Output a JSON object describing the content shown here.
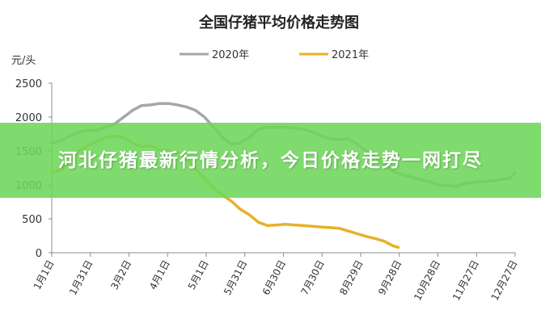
{
  "banner": {
    "headline": "河北仔猪最新行情分析，今日价格走势一网打尽"
  },
  "colors": {
    "series_2020": "#a6a6a6",
    "series_2021": "#e6b12a",
    "banner": "#6ed65a"
  },
  "chart_data": {
    "type": "line",
    "title": "全国仔猪平均价格走势图",
    "ylabel": "元/头",
    "xlabel": "",
    "ylim": [
      0,
      2500
    ],
    "yticks": [
      0,
      500,
      1000,
      1500,
      2000,
      2500
    ],
    "grid": false,
    "legend_position": "top",
    "x_ticks": [
      "1月1日",
      "1月31日",
      "3月2日",
      "4月1日",
      "5月1日",
      "5月31日",
      "6月30日",
      "7月30日",
      "8月29日",
      "9月28日",
      "10月28日",
      "11月27日",
      "12月27日"
    ],
    "series": [
      {
        "name": "2020年",
        "color": "#a6a6a6",
        "x": [
          0,
          7,
          14,
          21,
          28,
          35,
          42,
          49,
          56,
          63,
          70,
          77,
          84,
          91,
          98,
          105,
          112,
          119,
          126,
          133,
          140,
          147,
          154,
          161,
          168,
          175,
          182,
          189,
          196,
          203,
          210,
          217,
          224,
          231,
          238,
          245,
          252,
          259,
          266,
          273,
          280,
          287,
          294,
          301,
          308,
          315,
          322,
          329,
          336,
          343,
          350,
          357,
          361
        ],
        "y": [
          1620,
          1650,
          1720,
          1780,
          1800,
          1810,
          1850,
          1900,
          2000,
          2100,
          2170,
          2180,
          2200,
          2200,
          2180,
          2150,
          2100,
          2000,
          1850,
          1700,
          1600,
          1620,
          1700,
          1820,
          1850,
          1850,
          1850,
          1840,
          1820,
          1780,
          1720,
          1680,
          1670,
          1680,
          1600,
          1500,
          1400,
          1300,
          1200,
          1150,
          1120,
          1080,
          1050,
          1000,
          990,
          980,
          1020,
          1040,
          1050,
          1060,
          1080,
          1100,
          1180
        ]
      },
      {
        "name": "2021年",
        "color": "#e6b12a",
        "x": [
          0,
          7,
          14,
          21,
          28,
          35,
          42,
          49,
          56,
          63,
          70,
          77,
          84,
          91,
          98,
          105,
          112,
          119,
          126,
          133,
          140,
          147,
          154,
          161,
          168,
          175,
          182,
          189,
          196,
          203,
          210,
          217,
          224,
          231,
          238,
          245,
          252,
          259,
          266,
          270
        ],
        "y": [
          1180,
          1220,
          1350,
          1500,
          1580,
          1640,
          1700,
          1720,
          1700,
          1620,
          1560,
          1580,
          1520,
          1500,
          1480,
          1380,
          1240,
          1100,
          960,
          850,
          760,
          640,
          560,
          450,
          400,
          410,
          420,
          410,
          400,
          390,
          380,
          370,
          360,
          320,
          280,
          240,
          210,
          170,
          100,
          80
        ]
      }
    ]
  }
}
